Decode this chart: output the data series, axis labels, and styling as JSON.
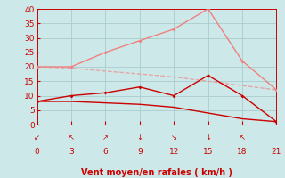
{
  "x": [
    0,
    3,
    6,
    9,
    12,
    15,
    18,
    21
  ],
  "line1": [
    20,
    20,
    25,
    29,
    33,
    40,
    22,
    12
  ],
  "line2": [
    20,
    19.5,
    18.5,
    17.5,
    16.5,
    15,
    13.5,
    12
  ],
  "line3": [
    8,
    10,
    11,
    13,
    10,
    17,
    10,
    1
  ],
  "line4": [
    8,
    8,
    7.5,
    7,
    6,
    4,
    2,
    1
  ],
  "line1_color": "#f08080",
  "line2_color": "#e8a0a0",
  "line3_color": "#cc0000",
  "line4_color": "#cc0000",
  "bg_color": "#cce8e8",
  "grid_color": "#aacccc",
  "xlabel": "Vent moyen/en rafales ( km/h )",
  "xlabel_color": "#cc0000",
  "tick_color": "#cc0000",
  "xlim": [
    0,
    21
  ],
  "ylim": [
    0,
    40
  ],
  "xticks": [
    0,
    3,
    6,
    9,
    12,
    15,
    18,
    21
  ],
  "yticks": [
    0,
    5,
    10,
    15,
    20,
    25,
    30,
    35,
    40
  ],
  "arrow_labels": [
    "↙",
    "↖",
    "↗",
    "↓",
    "↘",
    "↓",
    "↖",
    ""
  ]
}
